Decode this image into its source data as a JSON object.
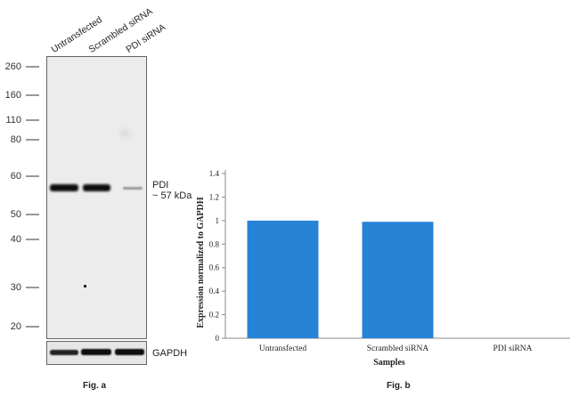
{
  "fig_a": {
    "lanes": [
      "Untransfected",
      "Scrambled siRNA",
      "PDI siRNA"
    ],
    "markers": [
      "260",
      "160",
      "110",
      "80",
      "60",
      "50",
      "40",
      "30",
      "20"
    ],
    "band_label_line1": "PDI",
    "band_label_line2": "~ 57 kDa",
    "loading_label": "GAPDH",
    "caption": "Fig. a"
  },
  "fig_b": {
    "caption": "Fig. b"
  },
  "chart_data": {
    "type": "bar",
    "categories": [
      "Untransfected",
      "Scrambled siRNA",
      "PDI siRNA"
    ],
    "values": [
      1.0,
      0.99,
      0.0
    ],
    "xlabel": "Samples",
    "ylabel": "Expression normalized to GAPDH",
    "ylim": [
      0,
      1.4
    ],
    "yticks": [
      "0",
      "0.2",
      "0.4",
      "0.6",
      "0.8",
      "1",
      "1.2",
      "1.4"
    ],
    "bar_color": "#2683d6",
    "grid": false
  }
}
